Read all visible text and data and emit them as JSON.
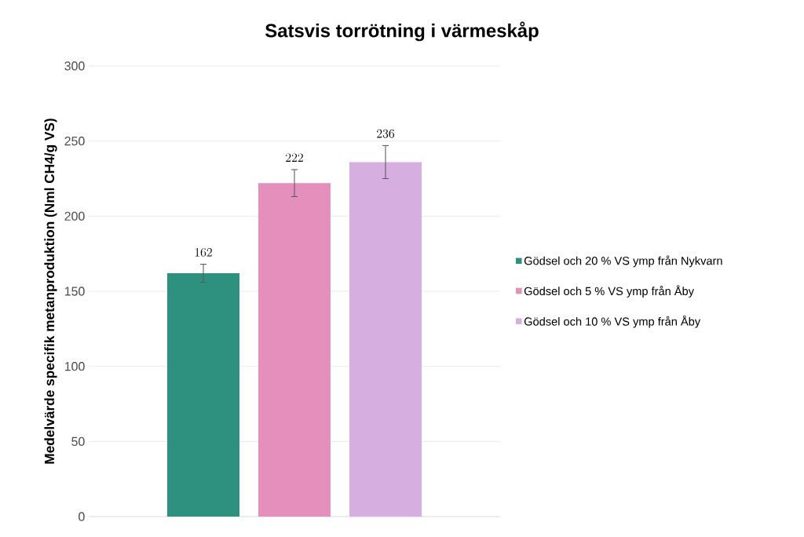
{
  "chart_data": {
    "type": "bar",
    "title": "Satsvis torrötning i värmeskåp",
    "ylabel": "Medelvärde specifik metanproduktion (Nml CH4/g VS)",
    "categories": [
      null
    ],
    "series": [
      {
        "name": "Gödsel och 20 % VS ymp från Nykvarn",
        "color": "#2e9180",
        "values": [
          162
        ],
        "errors": [
          6
        ]
      },
      {
        "name": "Gödsel och 5 % VS ymp från Åby",
        "color": "#e48fbc",
        "values": [
          222
        ],
        "errors": [
          9
        ]
      },
      {
        "name": "Gödsel och 10 % VS ymp från Åby",
        "color": "#d6aee0",
        "values": [
          236
        ],
        "errors": [
          11
        ]
      }
    ],
    "ylim": [
      0,
      300
    ],
    "yticks": [
      0,
      50,
      100,
      150,
      200,
      250,
      300
    ],
    "grid": "y",
    "legend": "right",
    "data_labels": true
  }
}
